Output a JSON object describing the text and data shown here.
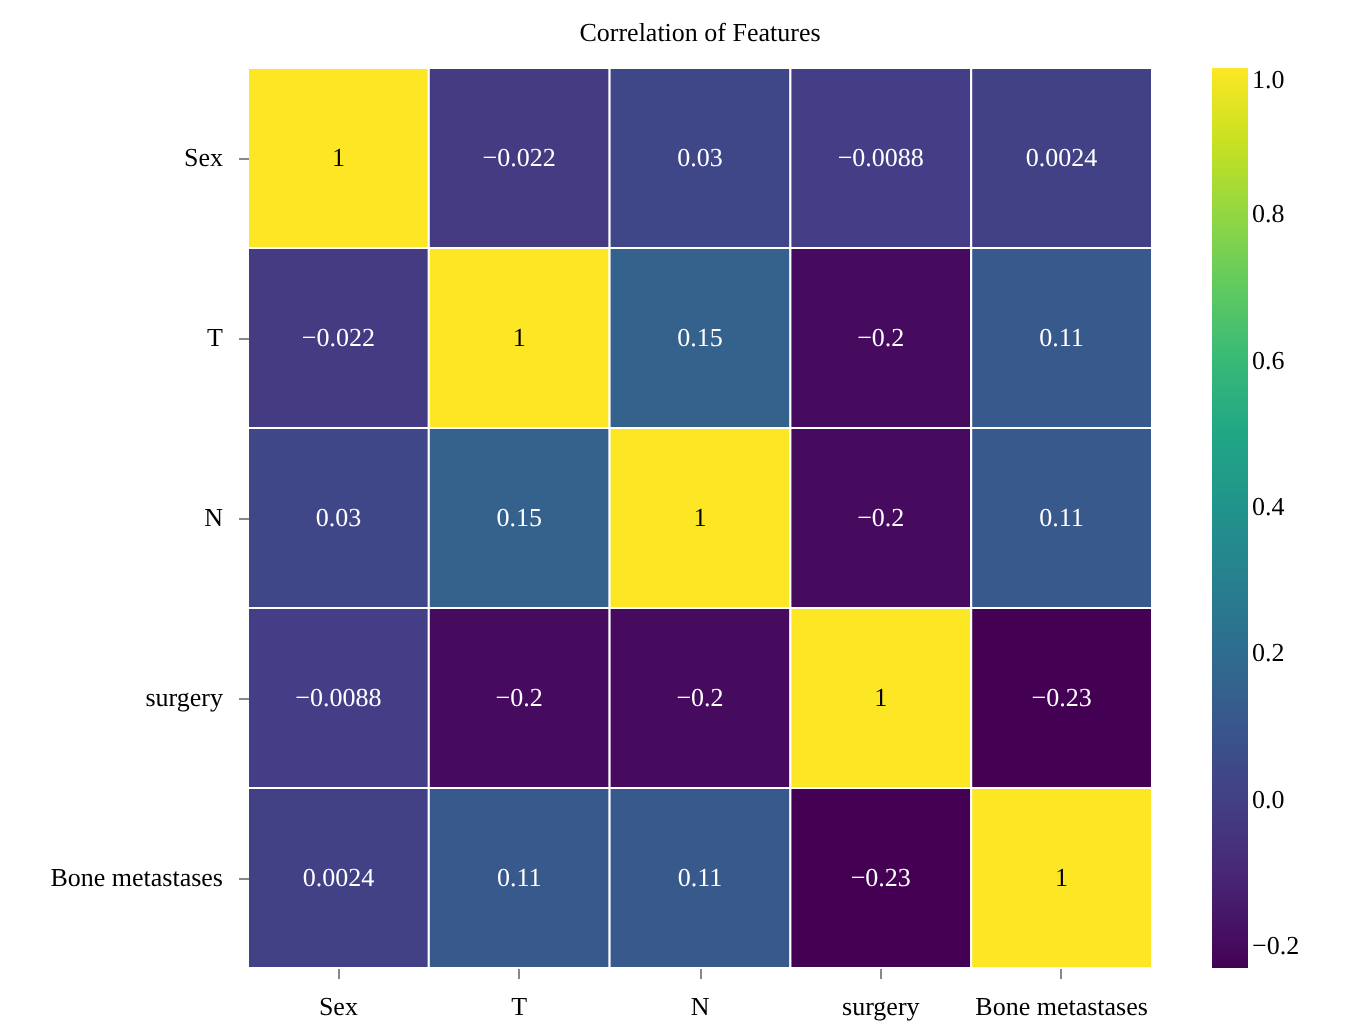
{
  "chart_data": {
    "type": "heatmap",
    "title": "Correlation of Features",
    "categories": [
      "Sex",
      "T",
      "N",
      "surgery",
      "Bone metastases"
    ],
    "y_categories": [
      "Sex",
      "T",
      "N",
      "surgery",
      "Bone metastases"
    ],
    "cells": [
      [
        1,
        -0.022,
        0.03,
        -0.0088,
        0.0024
      ],
      [
        -0.022,
        1,
        0.15,
        -0.2,
        0.11
      ],
      [
        0.03,
        0.15,
        1,
        -0.2,
        0.11
      ],
      [
        -0.0088,
        -0.2,
        -0.2,
        1,
        -0.23
      ],
      [
        0.0024,
        0.11,
        0.11,
        -0.23,
        1
      ]
    ],
    "cell_labels": [
      [
        "1",
        "−0.022",
        "0.03",
        "−0.0088",
        "0.0024"
      ],
      [
        "−0.022",
        "1",
        "0.15",
        "−0.2",
        "0.11"
      ],
      [
        "0.03",
        "0.15",
        "1",
        "−0.2",
        "0.11"
      ],
      [
        "−0.0088",
        "−0.2",
        "−0.2",
        "1",
        "−0.23"
      ],
      [
        "0.0024",
        "0.11",
        "0.11",
        "−0.23",
        "1"
      ]
    ],
    "clim": [
      -0.23,
      1
    ],
    "cticks": [
      {
        "value": -0.2,
        "label": "−0.2"
      },
      {
        "value": 0,
        "label": "0.0"
      },
      {
        "value": 0.2,
        "label": "0.2"
      },
      {
        "value": 0.4,
        "label": "0.4"
      },
      {
        "value": 0.6,
        "label": "0.6"
      },
      {
        "value": 0.8,
        "label": "0.8"
      },
      {
        "value": 1,
        "label": "1.0"
      }
    ]
  }
}
